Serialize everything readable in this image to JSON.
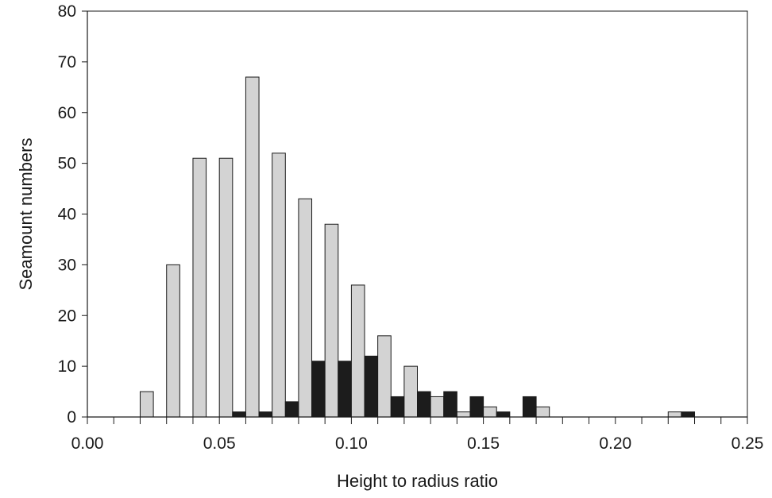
{
  "chart_data": {
    "type": "bar",
    "title": "",
    "xlabel": "Height to radius ratio",
    "ylabel": "Seamount numbers",
    "xlim": [
      0.0,
      0.25
    ],
    "ylim": [
      0,
      80
    ],
    "xticks": [
      "0.00",
      "0.05",
      "0.10",
      "0.15",
      "0.20",
      "0.25"
    ],
    "yticks": [
      "0",
      "10",
      "20",
      "30",
      "40",
      "50",
      "60",
      "70",
      "80"
    ],
    "bin_width": 0.01,
    "grid": false,
    "legend": "none",
    "x": [
      0.025,
      0.035,
      0.045,
      0.055,
      0.065,
      0.075,
      0.085,
      0.095,
      0.105,
      0.115,
      0.125,
      0.135,
      0.145,
      0.155,
      0.165,
      0.175,
      0.185,
      0.195,
      0.205,
      0.215,
      0.225
    ],
    "series": [
      {
        "color": "#d3d3d3",
        "values": [
          5,
          30,
          51,
          51,
          67,
          52,
          43,
          38,
          26,
          16,
          10,
          4,
          1,
          2,
          0,
          2,
          0,
          0,
          0,
          0,
          1
        ]
      },
      {
        "color": "#1c1c1c",
        "values": [
          0,
          0,
          0,
          1,
          1,
          3,
          11,
          11,
          12,
          4,
          5,
          5,
          4,
          1,
          4,
          0,
          0,
          0,
          0,
          0,
          1
        ]
      }
    ]
  }
}
